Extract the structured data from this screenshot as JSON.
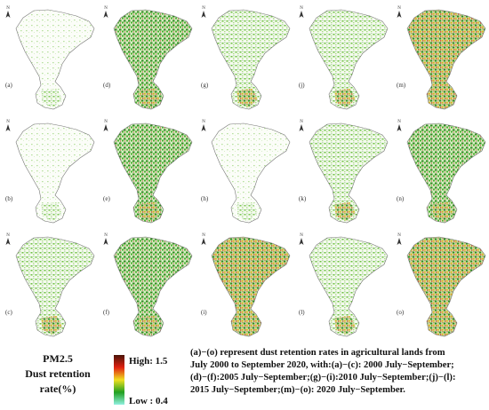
{
  "panels": [
    {
      "label": "(a)"
    },
    {
      "label": "(b)"
    },
    {
      "label": "(c)"
    },
    {
      "label": "(d)"
    },
    {
      "label": "(e)"
    },
    {
      "label": "(f)"
    },
    {
      "label": "(g)"
    },
    {
      "label": "(h)"
    },
    {
      "label": "(i)"
    },
    {
      "label": "(j)"
    },
    {
      "label": "(k)"
    },
    {
      "label": "(l)"
    },
    {
      "label": "(m)"
    },
    {
      "label": "(n)"
    },
    {
      "label": "(o)"
    }
  ],
  "north_label": "N",
  "legend": {
    "title_lines": [
      "PM2.5",
      "Dust retention",
      "rate(%)"
    ],
    "high": "High: 1.5",
    "low": "Low : 0.4"
  },
  "caption_lines": [
    "(a)−(o) represent dust retention rates in agricultural lands  from",
    "July 2000 to September 2020, with:(a)−(c): 2000 July−September;",
    "(d)−(f):2005 July−September;(g)−(i):2010 July−September;(j)−(l):",
    "2015 July−September;(m)−(o): 2020 July−September."
  ]
}
